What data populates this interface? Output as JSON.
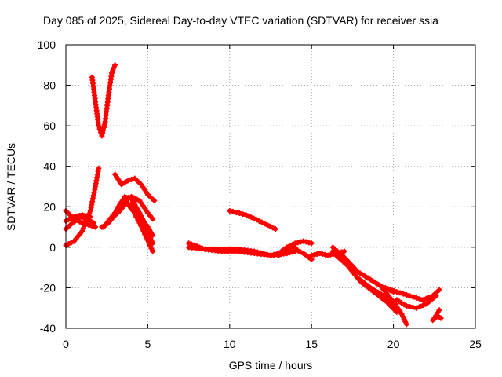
{
  "chart_data": {
    "type": "scatter",
    "title": "Day 085 of 2025, Sidereal Day-to-day VTEC variation (SDTVAR) for receiver ssia",
    "xlabel": "GPS time / hours",
    "ylabel": "SDTVAR / TECUs",
    "xlim": [
      0,
      25
    ],
    "ylim": [
      -40,
      100
    ],
    "x_ticks": [
      "0",
      "5",
      "10",
      "15",
      "20",
      "25"
    ],
    "y_ticks": [
      "-40",
      "-20",
      "0",
      "20",
      "40",
      "60",
      "80",
      "100"
    ],
    "grid": true,
    "marker": "plus",
    "color": "#ff0000",
    "series": [
      {
        "x": [
          0.0,
          0.5,
          1.0,
          1.5,
          1.8,
          2.0
        ],
        "y": [
          1,
          3,
          8,
          18,
          30,
          39
        ]
      },
      {
        "x": [
          0.0,
          0.5,
          1.0,
          1.4,
          1.8
        ],
        "y": [
          18,
          14,
          12,
          11,
          10
        ]
      },
      {
        "x": [
          0.0,
          0.4,
          0.9,
          1.3,
          1.7
        ],
        "y": [
          9,
          12,
          15,
          14,
          12
        ]
      },
      {
        "x": [
          0.0,
          0.5,
          1.0,
          1.5
        ],
        "y": [
          13,
          15,
          16,
          15
        ]
      },
      {
        "x": [
          1.6,
          1.8,
          2.0,
          2.2,
          2.4,
          2.6,
          2.8,
          3.0
        ],
        "y": [
          84,
          72,
          60,
          55,
          62,
          75,
          86,
          90
        ]
      },
      {
        "x": [
          2.2,
          2.6,
          3.0,
          3.5,
          4.0,
          4.5,
          5.0,
          5.3
        ],
        "y": [
          10,
          12,
          16,
          22,
          25,
          23,
          17,
          14
        ]
      },
      {
        "x": [
          2.3,
          2.8,
          3.2,
          3.6,
          4.0,
          4.5,
          5.0,
          5.3
        ],
        "y": [
          10,
          14,
          20,
          25,
          24,
          17,
          8,
          2
        ]
      },
      {
        "x": [
          3.0,
          3.4,
          3.8,
          4.2,
          4.6,
          5.0,
          5.4
        ],
        "y": [
          36,
          31,
          33,
          34,
          31,
          26,
          23
        ]
      },
      {
        "x": [
          2.9,
          3.3,
          3.7,
          4.1,
          4.5,
          4.9,
          5.3
        ],
        "y": [
          15,
          18,
          22,
          18,
          12,
          5,
          -2
        ]
      },
      {
        "x": [
          2.5,
          3.0,
          3.5,
          4.0,
          4.5,
          5.0,
          5.3
        ],
        "y": [
          12,
          17,
          22,
          21,
          16,
          10,
          6
        ]
      },
      {
        "x": [
          7.5,
          8.5,
          9.5,
          10.5,
          11.5,
          12.5,
          13.5,
          14.0
        ],
        "y": [
          2,
          -1,
          -1,
          -1,
          -2,
          -4,
          -2,
          0
        ]
      },
      {
        "x": [
          7.5,
          8.5,
          9.5,
          10.5,
          11.5,
          12.5,
          13.5,
          14.0
        ],
        "y": [
          0,
          -1,
          -2,
          -2,
          -3,
          -4,
          -3,
          -2
        ]
      },
      {
        "x": [
          10.0,
          11.0,
          11.8,
          12.3,
          12.8
        ],
        "y": [
          18,
          16,
          13,
          11,
          9
        ]
      },
      {
        "x": [
          13.0,
          13.5,
          14.0,
          14.5,
          15.0
        ],
        "y": [
          -3,
          0,
          2,
          3,
          2
        ]
      },
      {
        "x": [
          13.0,
          13.5,
          14.0,
          14.5,
          15.0
        ],
        "y": [
          -4,
          -2,
          -1,
          -3,
          -6
        ]
      },
      {
        "x": [
          15.0,
          15.5,
          16.0,
          16.5,
          17.0
        ],
        "y": [
          -4,
          -3,
          -4,
          -3,
          -2
        ]
      },
      {
        "x": [
          16.3,
          17.0,
          17.8,
          18.6,
          19.4,
          20.0
        ],
        "y": [
          0,
          -5,
          -12,
          -16,
          -20,
          -22
        ]
      },
      {
        "x": [
          16.3,
          17.0,
          17.8,
          18.6,
          19.4,
          20.0
        ],
        "y": [
          -2,
          -7,
          -15,
          -20,
          -24,
          -28
        ]
      },
      {
        "x": [
          16.5,
          17.2,
          18.0,
          18.8,
          19.6,
          20.2
        ],
        "y": [
          -4,
          -9,
          -17,
          -22,
          -27,
          -32
        ]
      },
      {
        "x": [
          19.3,
          19.7,
          20.1,
          20.5,
          20.8
        ],
        "y": [
          -20,
          -24,
          -28,
          -33,
          -38
        ]
      },
      {
        "x": [
          19.5,
          20.2,
          21.0,
          21.8,
          22.4,
          22.8
        ],
        "y": [
          -20,
          -22,
          -24,
          -26,
          -24,
          -21
        ]
      },
      {
        "x": [
          20.2,
          20.8,
          21.4,
          22.0,
          22.6
        ],
        "y": [
          -26,
          -29,
          -30,
          -28,
          -24
        ]
      },
      {
        "x": [
          22.5,
          22.8
        ],
        "y": [
          -35,
          -31
        ]
      },
      {
        "x": [
          22.4,
          22.7,
          22.9
        ],
        "y": [
          -36,
          -34,
          -35
        ]
      }
    ]
  }
}
